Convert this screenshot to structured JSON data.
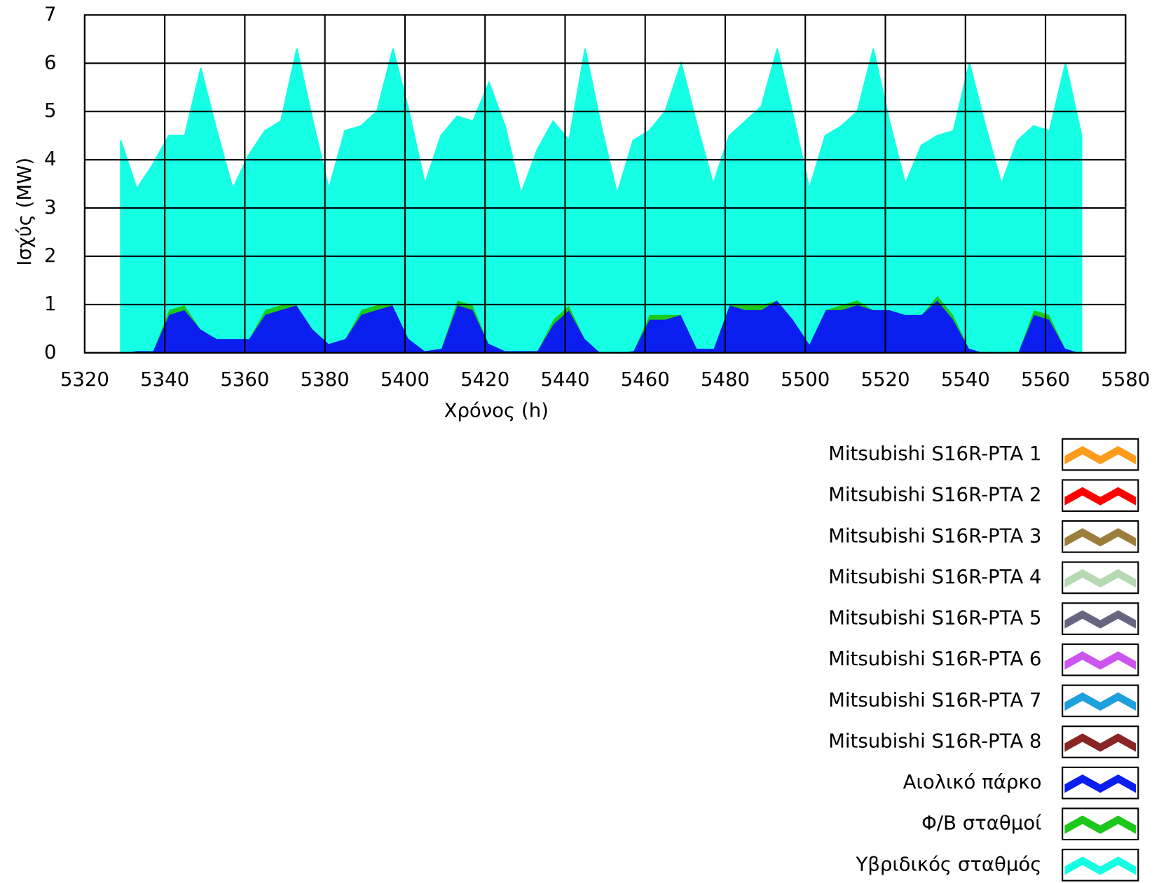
{
  "chart_data": {
    "type": "stacked_area",
    "x_label": "Χρόνος (h)",
    "y_label": "Ισχύς (MW)",
    "xlim": [
      5320,
      5580
    ],
    "xticks": [
      5320,
      5340,
      5360,
      5380,
      5400,
      5420,
      5440,
      5460,
      5480,
      5500,
      5520,
      5540,
      5560,
      5580
    ],
    "ylim": [
      0,
      7
    ],
    "yticks": [
      0,
      1,
      2,
      3,
      4,
      5,
      6,
      7
    ],
    "grid": true,
    "x": [
      5329,
      5333,
      5337,
      5341,
      5345,
      5349,
      5353,
      5357,
      5361,
      5365,
      5369,
      5373,
      5377,
      5381,
      5385,
      5389,
      5393,
      5397,
      5401,
      5405,
      5409,
      5413,
      5417,
      5421,
      5425,
      5429,
      5433,
      5437,
      5441,
      5445,
      5449,
      5453,
      5457,
      5461,
      5465,
      5469,
      5473,
      5477,
      5481,
      5485,
      5489,
      5493,
      5497,
      5501,
      5505,
      5509,
      5513,
      5517,
      5521,
      5525,
      5529,
      5533,
      5537,
      5541,
      5545,
      5549,
      5553,
      5557,
      5561,
      5565,
      5569
    ],
    "series": [
      {
        "name": "Mitsubishi S16R-PTA 1",
        "color": "#ff9c1c",
        "values": [
          0,
          0,
          0,
          0,
          0,
          0,
          0,
          0,
          0,
          0,
          0,
          0,
          0,
          0,
          0,
          0,
          0,
          0,
          0,
          0,
          0,
          0,
          0,
          0,
          0,
          0,
          0,
          0,
          0,
          0,
          0,
          0,
          0,
          0,
          0,
          0,
          0,
          0,
          0,
          0,
          0,
          0,
          0,
          0,
          0,
          0,
          0,
          0,
          0,
          0,
          0,
          0,
          0,
          0,
          0,
          0,
          0,
          0,
          0,
          0,
          0
        ]
      },
      {
        "name": "Mitsubishi S16R-PTA 2",
        "color": "#ff0000",
        "values": [
          0,
          0,
          0,
          0,
          0,
          0,
          0,
          0,
          0,
          0,
          0,
          0,
          0,
          0,
          0,
          0,
          0,
          0,
          0,
          0,
          0,
          0,
          0,
          0,
          0,
          0,
          0,
          0,
          0,
          0,
          0,
          0,
          0,
          0,
          0,
          0,
          0,
          0,
          0,
          0,
          0,
          0,
          0,
          0,
          0,
          0,
          0,
          0,
          0,
          0,
          0,
          0,
          0,
          0,
          0,
          0,
          0,
          0,
          0,
          0,
          0
        ]
      },
      {
        "name": "Mitsubishi S16R-PTA 3",
        "color": "#9c7e3c",
        "values": [
          0,
          0,
          0,
          0,
          0,
          0,
          0,
          0,
          0,
          0,
          0,
          0,
          0,
          0,
          0,
          0,
          0,
          0,
          0,
          0,
          0,
          0,
          0,
          0,
          0,
          0,
          0,
          0,
          0,
          0,
          0,
          0,
          0,
          0,
          0,
          0,
          0,
          0,
          0,
          0,
          0,
          0,
          0,
          0,
          0,
          0,
          0,
          0,
          0,
          0,
          0,
          0,
          0,
          0,
          0,
          0,
          0,
          0,
          0,
          0,
          0
        ]
      },
      {
        "name": "Mitsubishi S16R-PTA 4",
        "color": "#b5d9b0",
        "values": [
          0,
          0,
          0,
          0,
          0,
          0,
          0,
          0,
          0,
          0,
          0,
          0,
          0,
          0,
          0,
          0,
          0,
          0,
          0,
          0,
          0,
          0,
          0,
          0,
          0,
          0,
          0,
          0,
          0,
          0,
          0,
          0,
          0,
          0,
          0,
          0,
          0,
          0,
          0,
          0,
          0,
          0,
          0,
          0,
          0,
          0,
          0,
          0,
          0,
          0,
          0,
          0,
          0,
          0,
          0,
          0,
          0,
          0,
          0,
          0,
          0
        ]
      },
      {
        "name": "Mitsubishi S16R-PTA 5",
        "color": "#666680",
        "values": [
          0,
          0,
          0,
          0,
          0,
          0,
          0,
          0,
          0,
          0,
          0,
          0,
          0,
          0,
          0,
          0,
          0,
          0,
          0,
          0,
          0,
          0,
          0,
          0,
          0,
          0,
          0,
          0,
          0,
          0,
          0,
          0,
          0,
          0,
          0,
          0,
          0,
          0,
          0,
          0,
          0,
          0,
          0,
          0,
          0,
          0,
          0,
          0,
          0,
          0,
          0,
          0,
          0,
          0,
          0,
          0,
          0,
          0,
          0,
          0,
          0
        ]
      },
      {
        "name": "Mitsubishi S16R-PTA 6",
        "color": "#cc55ee",
        "values": [
          0,
          0,
          0,
          0,
          0,
          0,
          0,
          0,
          0,
          0,
          0,
          0,
          0,
          0,
          0,
          0,
          0,
          0,
          0,
          0,
          0,
          0,
          0,
          0,
          0,
          0,
          0,
          0,
          0,
          0,
          0,
          0,
          0,
          0,
          0,
          0,
          0,
          0,
          0,
          0,
          0,
          0,
          0,
          0,
          0,
          0,
          0,
          0,
          0,
          0,
          0,
          0,
          0,
          0,
          0,
          0,
          0,
          0,
          0,
          0,
          0
        ]
      },
      {
        "name": "Mitsubishi S16R-PTA 7",
        "color": "#1ea0dc",
        "values": [
          0,
          0,
          0,
          0,
          0,
          0,
          0,
          0,
          0,
          0,
          0,
          0,
          0,
          0,
          0,
          0,
          0,
          0,
          0,
          0,
          0,
          0,
          0,
          0,
          0,
          0,
          0,
          0,
          0,
          0,
          0,
          0,
          0,
          0,
          0,
          0,
          0,
          0,
          0,
          0,
          0,
          0,
          0,
          0,
          0,
          0,
          0,
          0,
          0,
          0,
          0,
          0,
          0,
          0,
          0,
          0,
          0,
          0,
          0,
          0,
          0
        ]
      },
      {
        "name": "Mitsubishi S16R-PTA 8",
        "color": "#8a2525",
        "values": [
          0,
          0,
          0,
          0,
          0,
          0,
          0,
          0,
          0,
          0,
          0,
          0,
          0,
          0,
          0,
          0,
          0,
          0,
          0,
          0,
          0,
          0,
          0,
          0,
          0,
          0,
          0,
          0,
          0,
          0,
          0,
          0,
          0,
          0,
          0,
          0,
          0,
          0,
          0,
          0,
          0,
          0,
          0,
          0,
          0,
          0,
          0,
          0,
          0,
          0,
          0,
          0,
          0,
          0,
          0,
          0,
          0,
          0,
          0,
          0,
          0
        ]
      },
      {
        "name": "Αιολικό πάρκο",
        "color": "#0a1ef0",
        "values": [
          0,
          0.05,
          0.05,
          0.8,
          0.9,
          0.5,
          0.3,
          0.3,
          0.3,
          0.8,
          0.9,
          1.0,
          0.5,
          0.2,
          0.3,
          0.8,
          0.9,
          1.0,
          0.3,
          0.05,
          0.1,
          1.0,
          0.9,
          0.2,
          0.05,
          0.05,
          0.05,
          0.6,
          0.9,
          0.3,
          0,
          0,
          0.05,
          0.7,
          0.7,
          0.8,
          0.1,
          0.1,
          1.0,
          0.9,
          0.9,
          1.1,
          0.7,
          0.2,
          0.9,
          0.9,
          1.0,
          0.9,
          0.9,
          0.8,
          0.8,
          1.1,
          0.7,
          0.1,
          0,
          0,
          0,
          0.8,
          0.7,
          0.1,
          0
        ]
      },
      {
        "name": "Φ/Β σταθμοί",
        "color": "#1cc81c",
        "values": [
          0,
          0,
          0,
          0.1,
          0.1,
          0,
          0,
          0,
          0,
          0.1,
          0.1,
          0,
          0,
          0,
          0,
          0.1,
          0.1,
          0,
          0,
          0,
          0,
          0.1,
          0.1,
          0,
          0,
          0,
          0,
          0.1,
          0.1,
          0,
          0,
          0,
          0,
          0.1,
          0.1,
          0,
          0,
          0,
          0,
          0.1,
          0.1,
          0,
          0,
          0,
          0,
          0.1,
          0.1,
          0,
          0,
          0,
          0,
          0.1,
          0.1,
          0,
          0,
          0,
          0,
          0.1,
          0.1,
          0,
          0
        ]
      },
      {
        "name": "Υβριδικός σταθμός",
        "color": "#14ffe4",
        "values": [
          4.4,
          3.35,
          3.85,
          3.6,
          3.5,
          5.4,
          4.3,
          3.1,
          3.8,
          3.7,
          3.8,
          5.3,
          4.3,
          3.2,
          4.3,
          3.8,
          4.0,
          5.3,
          4.7,
          3.45,
          4.4,
          3.8,
          3.8,
          5.4,
          4.65,
          3.25,
          4.15,
          4.1,
          3.4,
          6.0,
          4.7,
          3.3,
          4.35,
          3.8,
          4.2,
          5.2,
          4.6,
          3.4,
          3.5,
          3.8,
          4.1,
          5.2,
          4.2,
          3.2,
          3.6,
          3.7,
          3.9,
          5.4,
          3.9,
          2.7,
          3.5,
          3.3,
          3.8,
          5.9,
          4.7,
          3.5,
          4.4,
          3.8,
          3.8,
          5.9,
          4.5
        ]
      }
    ]
  }
}
